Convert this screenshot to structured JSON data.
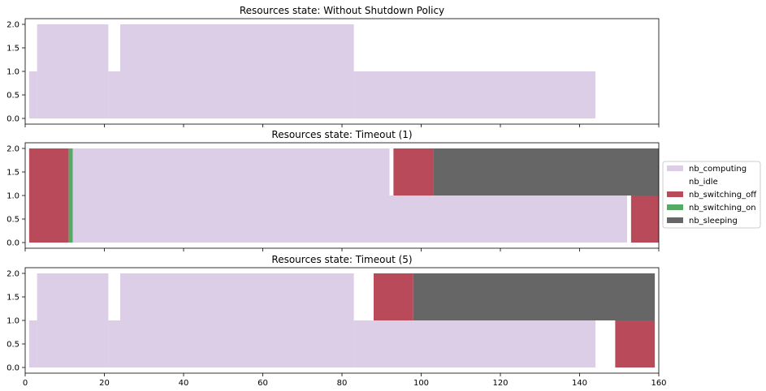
{
  "colors": {
    "nb_computing": "#dccee6",
    "nb_idle": "#ffffff",
    "nb_switching_off": "#b84a5a",
    "nb_switching_on": "#55aa66",
    "nb_sleeping": "#666666"
  },
  "chart_data": [
    {
      "type": "area",
      "title": "Resources state: Without Shutdown Policy",
      "xlim": [
        0,
        160
      ],
      "ylim": [
        0,
        2
      ],
      "yticks": [
        "0.0",
        "0.5",
        "1.0",
        "1.5",
        "2.0"
      ],
      "series": [
        {
          "name": "nb_computing",
          "segments": [
            {
              "x0": 1,
              "x1": 3,
              "y0": 0,
              "y1": 1
            },
            {
              "x0": 3,
              "x1": 21,
              "y0": 0,
              "y1": 2
            },
            {
              "x0": 21,
              "x1": 24,
              "y0": 0,
              "y1": 1
            },
            {
              "x0": 24,
              "x1": 83,
              "y0": 0,
              "y1": 2
            },
            {
              "x0": 83,
              "x1": 144,
              "y0": 0,
              "y1": 1
            }
          ]
        }
      ]
    },
    {
      "type": "area",
      "title": "Resources state: Timeout (1)",
      "xlim": [
        0,
        160
      ],
      "ylim": [
        0,
        2
      ],
      "yticks": [
        "0.0",
        "0.5",
        "1.0",
        "1.5",
        "2.0"
      ],
      "series": [
        {
          "name": "nb_switching_off",
          "segments": [
            {
              "x0": 1,
              "x1": 11,
              "y0": 0,
              "y1": 2
            },
            {
              "x0": 93,
              "x1": 103,
              "y0": 1,
              "y1": 2
            },
            {
              "x0": 153,
              "x1": 160,
              "y0": 0,
              "y1": 1
            }
          ]
        },
        {
          "name": "nb_switching_on",
          "segments": [
            {
              "x0": 11,
              "x1": 12,
              "y0": 0,
              "y1": 2
            }
          ]
        },
        {
          "name": "nb_computing",
          "segments": [
            {
              "x0": 12,
              "x1": 92,
              "y0": 0,
              "y1": 2
            },
            {
              "x0": 92,
              "x1": 152,
              "y0": 0,
              "y1": 1
            }
          ]
        },
        {
          "name": "nb_sleeping",
          "segments": [
            {
              "x0": 103,
              "x1": 160,
              "y0": 1,
              "y1": 2
            }
          ]
        }
      ]
    },
    {
      "type": "area",
      "title": "Resources state: Timeout (5)",
      "xlim": [
        0,
        160
      ],
      "ylim": [
        0,
        2
      ],
      "xticks": [
        "0",
        "20",
        "40",
        "60",
        "80",
        "100",
        "120",
        "140",
        "160"
      ],
      "yticks": [
        "0.0",
        "0.5",
        "1.0",
        "1.5",
        "2.0"
      ],
      "series": [
        {
          "name": "nb_computing",
          "segments": [
            {
              "x0": 1,
              "x1": 3,
              "y0": 0,
              "y1": 1
            },
            {
              "x0": 3,
              "x1": 21,
              "y0": 0,
              "y1": 2
            },
            {
              "x0": 21,
              "x1": 24,
              "y0": 0,
              "y1": 1
            },
            {
              "x0": 24,
              "x1": 83,
              "y0": 0,
              "y1": 2
            },
            {
              "x0": 83,
              "x1": 144,
              "y0": 0,
              "y1": 1
            }
          ]
        },
        {
          "name": "nb_switching_off",
          "segments": [
            {
              "x0": 88,
              "x1": 98,
              "y0": 1,
              "y1": 2
            },
            {
              "x0": 149,
              "x1": 159,
              "y0": 0,
              "y1": 1
            }
          ]
        },
        {
          "name": "nb_sleeping",
          "segments": [
            {
              "x0": 98,
              "x1": 159,
              "y0": 1,
              "y1": 2
            }
          ]
        }
      ]
    }
  ],
  "legend": {
    "placement": "right",
    "entries": [
      "nb_computing",
      "nb_idle",
      "nb_switching_off",
      "nb_switching_on",
      "nb_sleeping"
    ]
  }
}
